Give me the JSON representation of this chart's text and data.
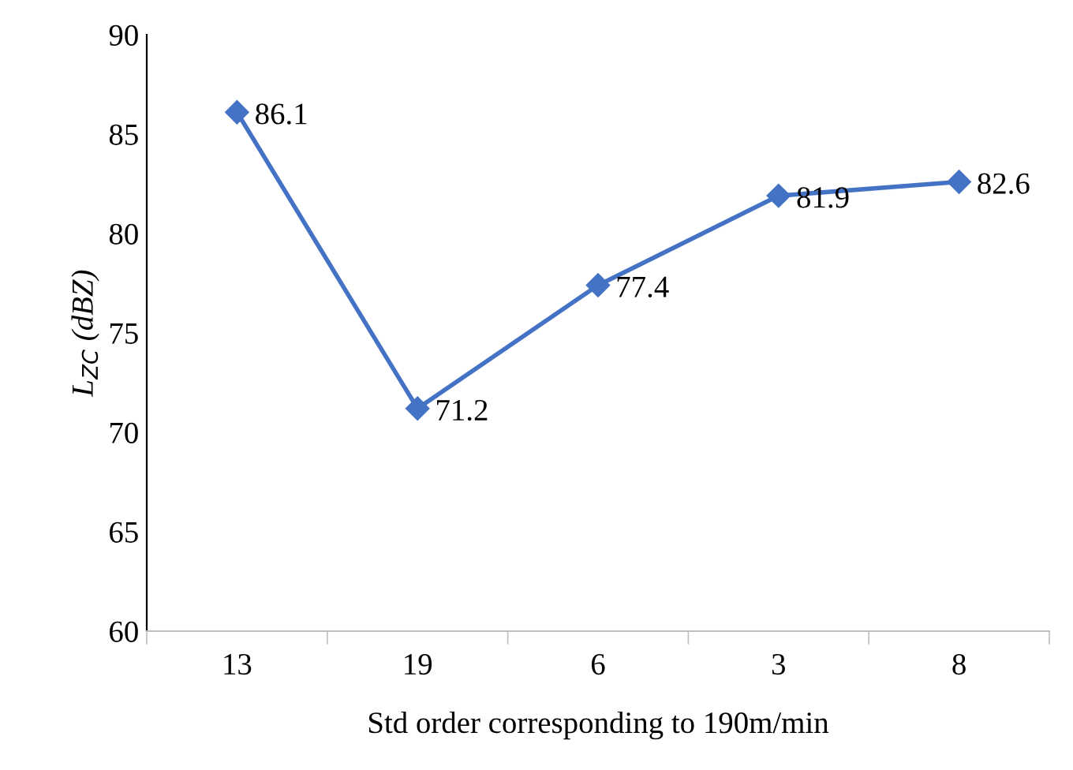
{
  "chart_data": {
    "type": "line",
    "xlabel": "Std order corresponding to 190m/min",
    "ylabel": "L$_{ZC}$ (dBZ)",
    "categories": [
      "13",
      "19",
      "6",
      "3",
      "8"
    ],
    "series": [
      {
        "color": "#4472c4",
        "values": [
          86.1,
          71.2,
          77.4,
          81.9,
          82.6
        ]
      }
    ],
    "ylim": [
      60,
      90
    ],
    "yticks": [
      60,
      65,
      70,
      75,
      80,
      85,
      90
    ],
    "grid": false,
    "legend": false,
    "marker": "diamond",
    "line_style": "solid",
    "data_labels": true
  }
}
